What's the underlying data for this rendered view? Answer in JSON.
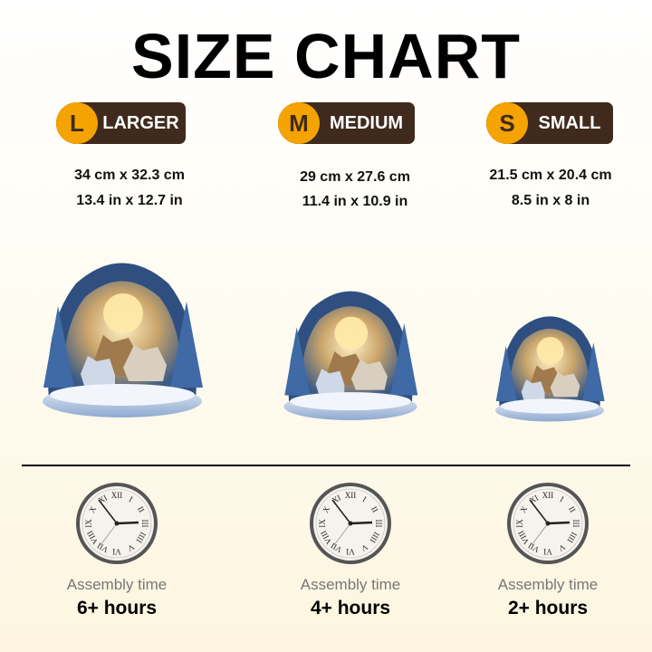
{
  "title": "SIZE CHART",
  "colors": {
    "badge_circle": "#f5a300",
    "badge_pill": "#3f2a1d"
  },
  "sizes": [
    {
      "letter": "L",
      "label": "LARGER",
      "cm": "34 cm x 32.3 cm",
      "in": "13.4 in x 12.7 in",
      "assembly_label": "Assembly time",
      "assembly_time": "6+ hours"
    },
    {
      "letter": "M",
      "label": "MEDIUM",
      "cm": "29 cm x 27.6 cm",
      "in": "11.4 in x 10.9 in",
      "assembly_label": "Assembly time",
      "assembly_time": "4+ hours"
    },
    {
      "letter": "S",
      "label": "SMALL",
      "cm": "21.5 cm x 20.4 cm",
      "in": "8.5 in x 8 in",
      "assembly_label": "Assembly time",
      "assembly_time": "2+ hours"
    }
  ],
  "icons": {
    "product": "wolf-moon-snow-dome",
    "clock": "roman-numeral-clock-icon"
  }
}
